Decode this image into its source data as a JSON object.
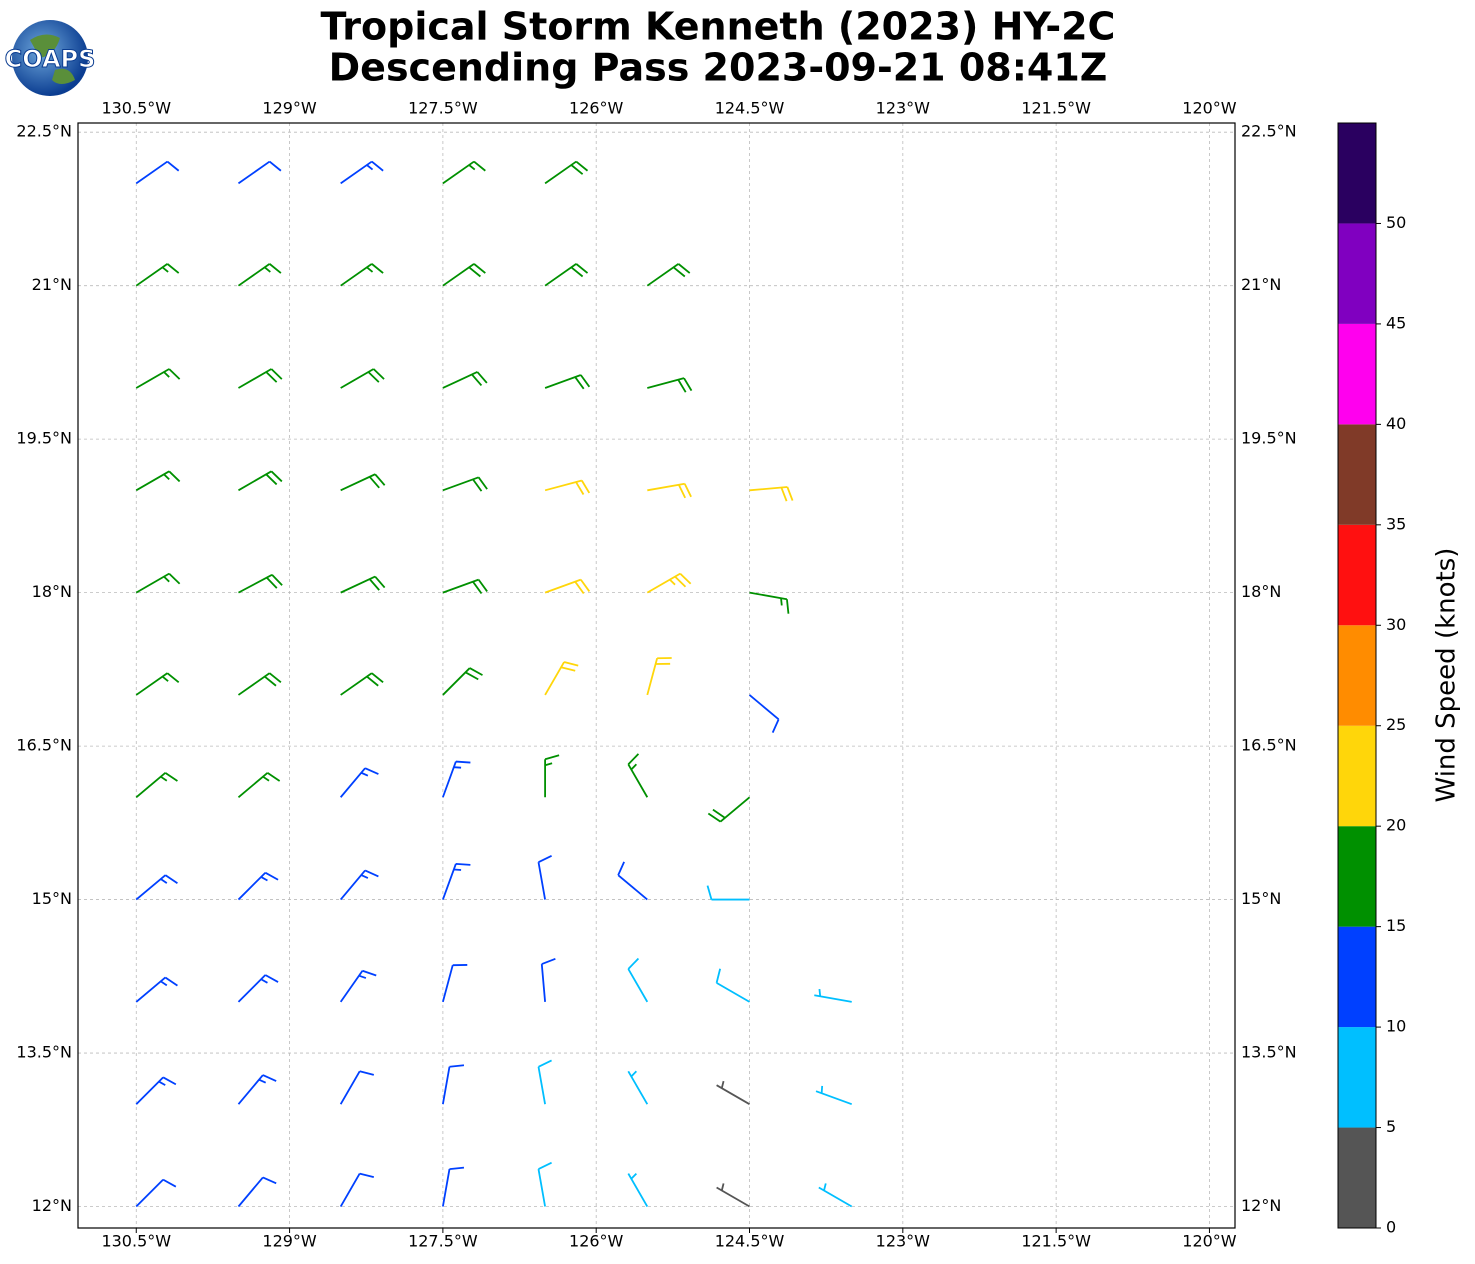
{
  "chart_data": {
    "type": "barbs",
    "title": "Tropical Storm Kenneth (2023) HY-2C",
    "subtitle": "Descending Pass 2023-09-21 08:41Z",
    "logo_text": "COAPS",
    "xlim": [
      -131.07,
      -119.75
    ],
    "ylim": [
      11.79,
      22.59
    ],
    "xticks": [
      {
        "value": -130.5,
        "label": "130.5°W"
      },
      {
        "value": -129,
        "label": "129°W"
      },
      {
        "value": -127.5,
        "label": "127.5°W"
      },
      {
        "value": -126,
        "label": "126°W"
      },
      {
        "value": -124.5,
        "label": "124.5°W"
      },
      {
        "value": -123,
        "label": "123°W"
      },
      {
        "value": -121.5,
        "label": "121.5°W"
      },
      {
        "value": -120,
        "label": "120°W"
      }
    ],
    "yticks": [
      {
        "value": 22.5,
        "label": "22.5°N"
      },
      {
        "value": 21,
        "label": "21°N"
      },
      {
        "value": 19.5,
        "label": "19.5°N"
      },
      {
        "value": 18,
        "label": "18°N"
      },
      {
        "value": 16.5,
        "label": "16.5°N"
      },
      {
        "value": 15,
        "label": "15°N"
      },
      {
        "value": 13.5,
        "label": "13.5°N"
      },
      {
        "value": 12,
        "label": "12°N"
      }
    ],
    "grid": true,
    "barbs": {
      "lon": [
        -130.5,
        -129.5,
        -128.5,
        -127.5,
        -126.5,
        -130.5,
        -129.5,
        -128.5,
        -127.5,
        -126.5,
        -125.5,
        -130.5,
        -129.5,
        -128.5,
        -127.5,
        -126.5,
        -125.5,
        -130.5,
        -129.5,
        -128.5,
        -127.5,
        -126.5,
        -125.5,
        -124.5,
        -130.5,
        -129.5,
        -128.5,
        -127.5,
        -126.5,
        -125.5,
        -124.5,
        -130.5,
        -129.5,
        -128.5,
        -127.5,
        -126.5,
        -125.5,
        -124.5,
        -130.5,
        -129.5,
        -128.5,
        -127.5,
        -126.5,
        -125.5,
        -124.5,
        -130.5,
        -129.5,
        -128.5,
        -127.5,
        -126.5,
        -125.5,
        -124.5,
        -130.5,
        -129.5,
        -128.5,
        -127.5,
        -126.5,
        -125.5,
        -124.5,
        -123.5,
        -130.5,
        -129.5,
        -128.5,
        -127.5,
        -126.5,
        -125.5,
        -124.5,
        -123.5,
        -130.5,
        -129.5,
        -128.5,
        -127.5,
        -126.5,
        -125.5,
        -124.5,
        -123.5
      ],
      "lat": [
        22,
        22,
        22,
        22,
        22,
        21,
        21,
        21,
        21,
        21,
        21,
        20,
        20,
        20,
        20,
        20,
        20,
        19,
        19,
        19,
        19,
        19,
        19,
        19,
        18,
        18,
        18,
        18,
        18,
        18,
        18,
        17,
        17,
        17,
        17,
        17,
        17,
        17,
        16,
        16,
        16,
        16,
        16,
        16,
        16,
        15,
        15,
        15,
        15,
        15,
        15,
        15,
        14,
        14,
        14,
        14,
        14,
        14,
        14,
        14,
        13,
        13,
        13,
        13,
        13,
        13,
        13,
        13,
        12,
        12,
        12,
        12,
        12,
        12,
        12,
        12
      ],
      "speed": [
        12,
        12,
        13,
        17,
        18,
        17,
        17,
        17,
        18,
        18,
        18,
        17,
        18,
        18,
        18,
        19,
        19,
        17,
        18,
        18,
        19,
        22,
        21,
        22,
        17,
        18,
        18,
        19,
        22,
        23,
        17,
        17,
        18,
        18,
        19,
        22,
        22,
        12,
        16,
        16,
        14,
        14,
        17,
        17,
        18,
        13,
        13,
        13,
        13,
        12,
        11,
        9,
        13,
        13,
        13,
        12,
        11,
        8,
        8,
        7,
        13,
        13,
        12,
        11,
        8,
        7,
        3,
        7,
        12,
        12,
        12,
        11,
        8,
        6,
        3,
        7
      ],
      "direction": [
        55,
        55,
        55,
        55,
        55,
        55,
        55,
        55,
        55,
        55,
        55,
        60,
        60,
        60,
        65,
        70,
        75,
        60,
        60,
        65,
        70,
        75,
        80,
        85,
        60,
        62,
        65,
        70,
        70,
        60,
        100,
        55,
        55,
        55,
        45,
        30,
        15,
        130,
        50,
        50,
        40,
        20,
        0,
        330,
        230,
        50,
        45,
        40,
        20,
        350,
        310,
        270,
        50,
        45,
        35,
        15,
        355,
        330,
        300,
        280,
        45,
        40,
        30,
        10,
        350,
        330,
        300,
        290,
        45,
        40,
        30,
        10,
        350,
        330,
        300,
        300
      ]
    },
    "colorbar": {
      "label": "Wind Speed (knots)",
      "bounds": [
        0,
        5,
        10,
        15,
        20,
        25,
        30,
        35,
        40,
        45,
        50,
        55
      ],
      "colors": [
        "#555555",
        "#00bfff",
        "#0040ff",
        "#009000",
        "#ffd60a",
        "#ff8c00",
        "#ff1010",
        "#803a28",
        "#ff00ee",
        "#8000c0",
        "#2a0060"
      ],
      "ticks": [
        0,
        5,
        10,
        15,
        20,
        25,
        30,
        35,
        40,
        45,
        50
      ]
    }
  }
}
